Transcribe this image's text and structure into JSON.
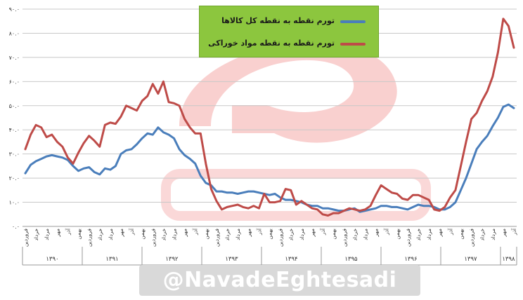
{
  "legend": {
    "all_goods": "تورم نقطه به نقطه کل کالاها",
    "food": "تورم نقطه به نقطه مواد خوراکی"
  },
  "watermark_text": "@NavadeEghtesadi",
  "colors": {
    "all_goods": "#4a7ebb",
    "food": "#be4b48",
    "legend_bg": "#8cc63e",
    "logo": "#f4a9a8"
  },
  "chart_data": {
    "type": "line",
    "title": "",
    "xlabel": "",
    "ylabel": "",
    "ylim": [
      0,
      90
    ],
    "yticks": [
      "۰.۰",
      "۱۰.۰",
      "۲۰.۰",
      "۳۰.۰",
      "۴۰.۰",
      "۵۰.۰",
      "۶۰.۰",
      "۷۰.۰",
      "۸۰.۰",
      "۹۰.۰"
    ],
    "month_labels": [
      "فروردین",
      "خرداد",
      "مرداد",
      "مهر",
      "آذر",
      "بهمن"
    ],
    "year_labels": [
      "۱۳۹۰",
      "۱۳۹۱",
      "۱۳۹۲",
      "۱۳۹۳",
      "۱۳۹۴",
      "۱۳۹۵",
      "۱۳۹۶",
      "۱۳۹۷",
      "۱۳۹۸"
    ],
    "grid": true,
    "series": [
      {
        "name": "تورم نقطه به نقطه کل کالاها",
        "values": [
          22.0,
          25.5,
          27.0,
          28.0,
          29.0,
          29.5,
          29.0,
          28.5,
          27.5,
          25.0,
          23.0,
          24.0,
          24.5,
          22.5,
          21.5,
          24.0,
          23.5,
          25.0,
          30.0,
          31.5,
          32.0,
          34.0,
          36.5,
          38.5,
          38.0,
          41.0,
          39.0,
          38.0,
          36.5,
          32.0,
          29.5,
          28.0,
          26.0,
          21.0,
          18.0,
          17.0,
          14.5,
          14.5,
          14.0,
          14.0,
          13.5,
          14.0,
          14.5,
          14.5,
          14.0,
          13.5,
          13.0,
          13.5,
          12.0,
          11.0,
          11.0,
          10.5,
          10.0,
          9.0,
          8.5,
          8.5,
          7.5,
          7.5,
          7.0,
          6.5,
          6.5,
          7.0,
          7.5,
          6.0,
          6.5,
          7.0,
          7.5,
          8.5,
          8.5,
          8.0,
          8.0,
          7.5,
          7.0,
          8.0,
          9.0,
          8.5,
          8.5,
          8.0,
          7.0,
          7.0,
          8.0,
          10.0,
          15.0,
          20.0,
          26.0,
          32.0,
          35.0,
          37.5,
          41.5,
          45.0,
          49.5,
          50.5,
          49.0
        ]
      },
      {
        "name": "تورم نقطه به نقطه مواد خوراکی",
        "values": [
          32.0,
          38.0,
          42.0,
          41.0,
          37.0,
          38.0,
          35.0,
          33.0,
          28.5,
          26.0,
          30.5,
          34.5,
          37.5,
          35.5,
          33.0,
          42.0,
          43.0,
          42.5,
          45.5,
          50.0,
          49.0,
          48.0,
          52.0,
          54.0,
          59.0,
          55.0,
          60.0,
          51.5,
          51.0,
          50.0,
          44.5,
          41.0,
          38.5,
          38.5,
          26.0,
          15.5,
          10.5,
          7.0,
          8.0,
          8.5,
          9.0,
          8.0,
          7.5,
          8.5,
          7.5,
          13.5,
          10.0,
          10.0,
          10.5,
          15.5,
          15.0,
          9.0,
          10.5,
          9.0,
          7.5,
          7.0,
          5.0,
          4.5,
          5.5,
          5.5,
          6.5,
          7.5,
          7.0,
          6.5,
          7.0,
          8.5,
          13.0,
          17.0,
          15.5,
          14.0,
          13.5,
          11.5,
          11.0,
          13.0,
          13.0,
          12.0,
          11.0,
          7.0,
          6.5,
          8.0,
          12.0,
          15.0,
          25.0,
          35.0,
          44.5,
          47.0,
          52.0,
          56.0,
          62.0,
          72.0,
          86.0,
          83.0,
          74.0
        ]
      }
    ]
  }
}
